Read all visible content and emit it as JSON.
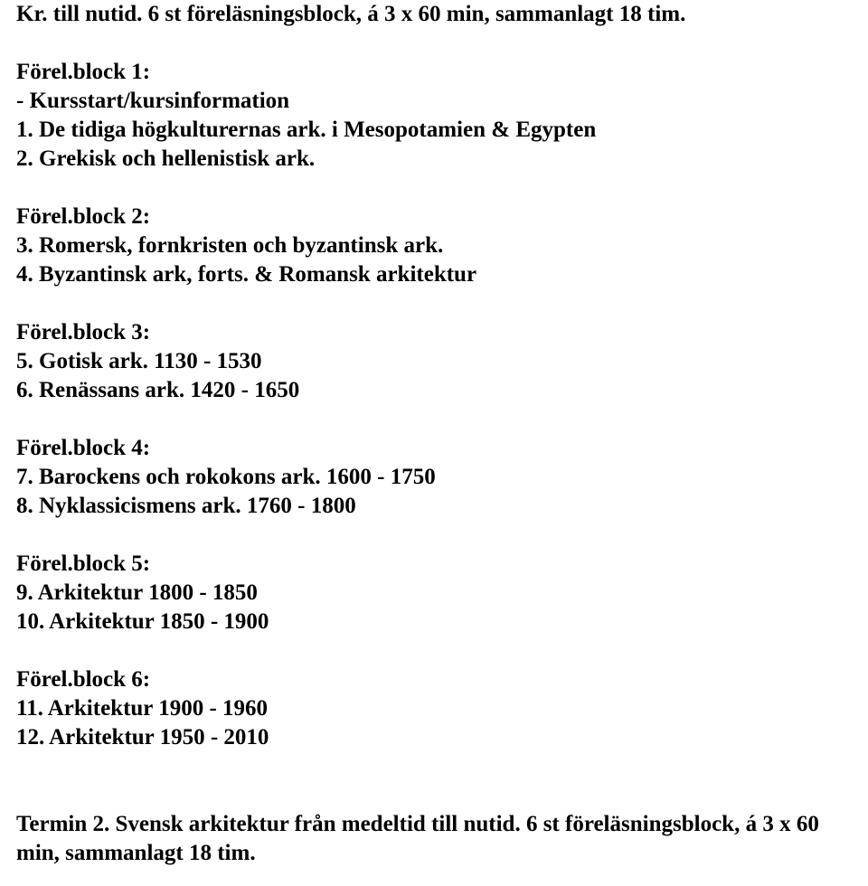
{
  "intro_line": "Kr. till nutid. 6 st föreläsningsblock, á 3 x 60 min, sammanlagt 18 tim.",
  "block1": {
    "heading": "Förel.block 1:",
    "items": [
      "- Kursstart/kursinformation",
      "1. De tidiga högkulturernas ark. i Mesopotamien & Egypten",
      "2. Grekisk och hellenistisk ark."
    ]
  },
  "block2": {
    "heading": "Förel.block 2:",
    "items": [
      "3. Romersk, fornkristen och byzantinsk ark.",
      "4. Byzantinsk ark, forts. & Romansk arkitektur"
    ]
  },
  "block3": {
    "heading": "Förel.block 3:",
    "items": [
      "5. Gotisk ark. 1130 - 1530",
      "6. Renässans ark. 1420 - 1650"
    ]
  },
  "block4": {
    "heading": "Förel.block 4:",
    "items": [
      "7. Barockens och rokokons ark. 1600 - 1750",
      "8. Nyklassicismens ark. 1760 - 1800"
    ]
  },
  "block5": {
    "heading": "Förel.block 5:",
    "items": [
      "9. Arkitektur 1800 - 1850",
      "10. Arkitektur 1850 - 1900"
    ]
  },
  "block6": {
    "heading": "Förel.block 6:",
    "items": [
      "11. Arkitektur 1900 - 1960",
      "12. Arkitektur 1950 - 2010"
    ]
  },
  "termin2": "Termin 2. Svensk arkitektur från medeltid till nutid. 6 st föreläsningsblock, á 3 x 60 min, sammanlagt 18 tim."
}
